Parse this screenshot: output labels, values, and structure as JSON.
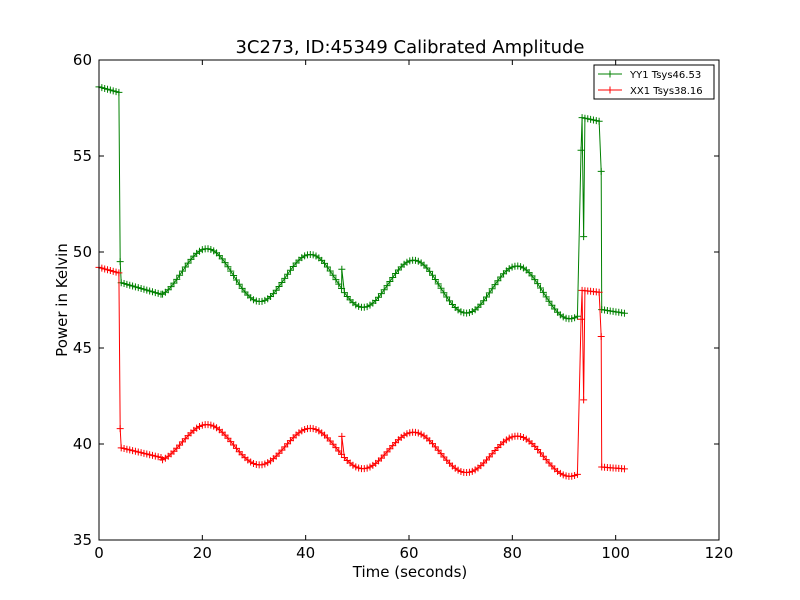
{
  "chart_data": {
    "type": "line",
    "title": "3C273, ID:45349 Calibrated Amplitude",
    "xlabel": "Time (seconds)",
    "ylabel": "Power in Kelvin",
    "xlim": [
      0,
      120
    ],
    "ylim": [
      35,
      60
    ],
    "xticks": [
      0,
      20,
      40,
      60,
      80,
      100,
      120
    ],
    "yticks": [
      35,
      40,
      45,
      50,
      55,
      60
    ],
    "grid": false,
    "legend_position": "top-right",
    "marker": "+",
    "series": [
      {
        "name": "YY1 Tsys46.53",
        "color": "#008000",
        "segments": [
          {
            "x0": 0,
            "x1": 4,
            "formula": "linear",
            "y0": 58.6,
            "y1": 58.3
          },
          {
            "x0": 4.3,
            "x1": 12,
            "formula": "linear",
            "y0": 48.4,
            "y1": 47.8
          },
          {
            "x0": 12.3,
            "x1": 93,
            "formula": "wave",
            "mean": 49.0,
            "amp": 1.3,
            "period": 20,
            "phase_x": 16,
            "trend": -0.015
          },
          {
            "x0": 93.5,
            "x1": 97,
            "formula": "linear",
            "y0": 57.0,
            "y1": 56.8
          },
          {
            "x0": 97.3,
            "x1": 102,
            "formula": "linear",
            "y0": 47.0,
            "y1": 46.8
          }
        ],
        "outliers": [
          [
            4.1,
            49.5
          ],
          [
            47,
            49.1
          ],
          [
            93.3,
            55.3
          ],
          [
            93.8,
            50.8
          ],
          [
            97.2,
            54.2
          ]
        ]
      },
      {
        "name": "XX1 Tsys38.16",
        "color": "#ff0000",
        "segments": [
          {
            "x0": 0,
            "x1": 4,
            "formula": "linear",
            "y0": 49.2,
            "y1": 48.9
          },
          {
            "x0": 4.3,
            "x1": 12,
            "formula": "linear",
            "y0": 39.8,
            "y1": 39.3
          },
          {
            "x0": 12.3,
            "x1": 93,
            "formula": "wave",
            "mean": 40.1,
            "amp": 1.0,
            "period": 20,
            "phase_x": 16,
            "trend": -0.01
          },
          {
            "x0": 93.5,
            "x1": 97,
            "formula": "linear",
            "y0": 48.0,
            "y1": 47.9
          },
          {
            "x0": 97.3,
            "x1": 102,
            "formula": "linear",
            "y0": 38.8,
            "y1": 38.7
          }
        ],
        "outliers": [
          [
            4.1,
            40.8
          ],
          [
            47,
            40.4
          ],
          [
            93.3,
            46.5
          ],
          [
            93.8,
            42.3
          ],
          [
            97.2,
            45.6
          ]
        ]
      }
    ]
  }
}
